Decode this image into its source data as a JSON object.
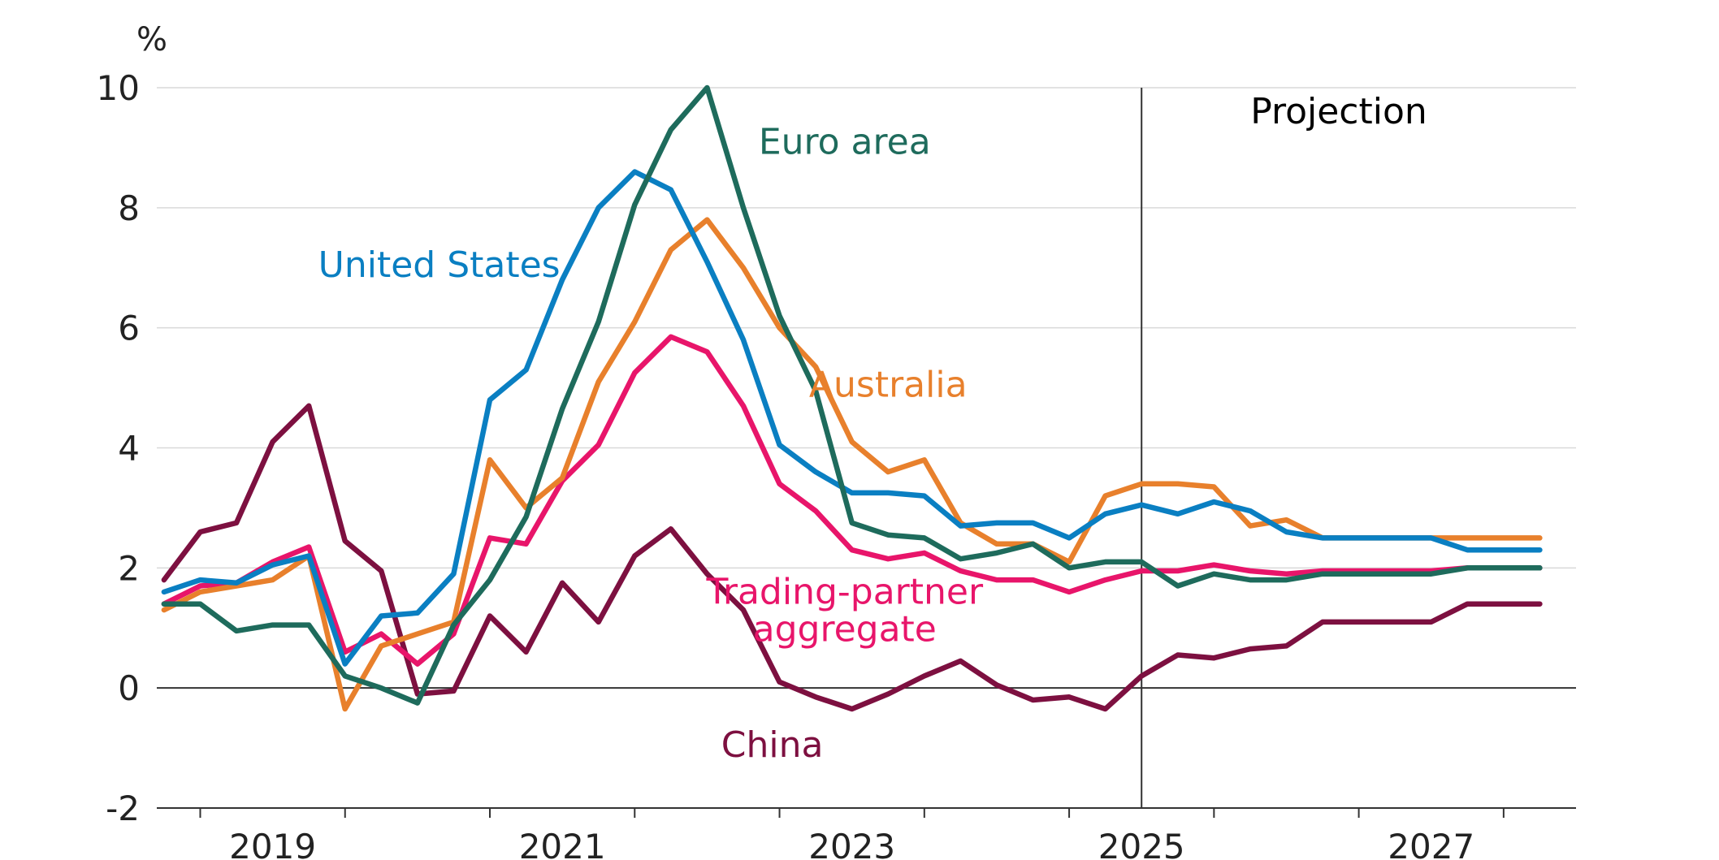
{
  "chart_data": {
    "type": "line",
    "ylabel": "%",
    "ylim": [
      -2,
      10
    ],
    "yticks": [
      -2,
      0,
      2,
      4,
      6,
      8,
      10
    ],
    "xlim": [
      2018.7,
      2028.5
    ],
    "xticks_labeled": [
      "2019",
      "2021",
      "2023",
      "2025",
      "2027"
    ],
    "projection_label": "Projection",
    "projection_start": 2025.5,
    "grid": true,
    "series": [
      {
        "name": "United States",
        "color": "#0a7fc2",
        "x": [
          2018.75,
          2019.0,
          2019.25,
          2019.5,
          2019.75,
          2020.0,
          2020.25,
          2020.5,
          2020.75,
          2021.0,
          2021.25,
          2021.5,
          2021.75,
          2022.0,
          2022.25,
          2022.5,
          2022.75,
          2023.0,
          2023.25,
          2023.5,
          2023.75,
          2024.0,
          2024.25,
          2024.5,
          2024.75,
          2025.0,
          2025.25,
          2025.5,
          2025.75,
          2026.0,
          2026.25,
          2026.5,
          2026.75,
          2027.0,
          2027.25,
          2027.5,
          2027.75,
          2028.0,
          2028.25
        ],
        "y": [
          1.6,
          1.8,
          1.75,
          2.05,
          2.2,
          0.4,
          1.2,
          1.25,
          1.9,
          4.8,
          5.3,
          6.8,
          8.0,
          8.6,
          8.3,
          7.1,
          5.8,
          4.05,
          3.6,
          3.25,
          3.25,
          3.2,
          2.7,
          2.75,
          2.75,
          2.5,
          2.9,
          3.05,
          2.9,
          3.1,
          2.95,
          2.6,
          2.5,
          2.5,
          2.5,
          2.5,
          2.3,
          2.3,
          2.3
        ]
      },
      {
        "name": "Euro area",
        "color": "#1e6b5c",
        "x": [
          2018.75,
          2019.0,
          2019.25,
          2019.5,
          2019.75,
          2020.0,
          2020.25,
          2020.5,
          2020.75,
          2021.0,
          2021.25,
          2021.5,
          2021.75,
          2022.0,
          2022.25,
          2022.5,
          2022.75,
          2023.0,
          2023.25,
          2023.5,
          2023.75,
          2024.0,
          2024.25,
          2024.5,
          2024.75,
          2025.0,
          2025.25,
          2025.5,
          2025.75,
          2026.0,
          2026.25,
          2026.5,
          2026.75,
          2027.0,
          2027.25,
          2027.5,
          2027.75,
          2028.0,
          2028.25
        ],
        "y": [
          1.4,
          1.4,
          0.95,
          1.05,
          1.05,
          0.2,
          0.0,
          -0.25,
          1.05,
          1.8,
          2.85,
          4.65,
          6.1,
          8.05,
          9.3,
          10.0,
          8.0,
          6.2,
          4.95,
          2.75,
          2.55,
          2.5,
          2.15,
          2.25,
          2.4,
          2.0,
          2.1,
          2.1,
          1.7,
          1.9,
          1.8,
          1.8,
          1.9,
          1.9,
          1.9,
          1.9,
          2.0,
          2.0,
          2.0
        ]
      },
      {
        "name": "Australia",
        "color": "#e8802c",
        "x": [
          2018.75,
          2019.0,
          2019.25,
          2019.5,
          2019.75,
          2020.0,
          2020.25,
          2020.5,
          2020.75,
          2021.0,
          2021.25,
          2021.5,
          2021.75,
          2022.0,
          2022.25,
          2022.5,
          2022.75,
          2023.0,
          2023.25,
          2023.5,
          2023.75,
          2024.0,
          2024.25,
          2024.5,
          2024.75,
          2025.0,
          2025.25,
          2025.5,
          2025.75,
          2026.0,
          2026.25,
          2026.5,
          2026.75,
          2027.0,
          2027.25,
          2027.5,
          2027.75,
          2028.0,
          2028.25
        ],
        "y": [
          1.3,
          1.6,
          1.7,
          1.8,
          2.2,
          -0.35,
          0.7,
          0.9,
          1.1,
          3.8,
          3.0,
          3.5,
          5.1,
          6.1,
          7.3,
          7.8,
          7.0,
          6.0,
          5.35,
          4.1,
          3.6,
          3.8,
          2.75,
          2.4,
          2.4,
          2.1,
          3.2,
          3.4,
          3.4,
          3.35,
          2.7,
          2.8,
          2.5,
          2.5,
          2.5,
          2.5,
          2.5,
          2.5,
          2.5
        ]
      },
      {
        "name": "Trading-partner aggregate",
        "color": "#e8156a",
        "x": [
          2018.75,
          2019.0,
          2019.25,
          2019.5,
          2019.75,
          2020.0,
          2020.25,
          2020.5,
          2020.75,
          2021.0,
          2021.25,
          2021.5,
          2021.75,
          2022.0,
          2022.25,
          2022.5,
          2022.75,
          2023.0,
          2023.25,
          2023.5,
          2023.75,
          2024.0,
          2024.25,
          2024.5,
          2024.75,
          2025.0,
          2025.25,
          2025.5,
          2025.75,
          2026.0,
          2026.25,
          2026.5,
          2026.75,
          2027.0,
          2027.25,
          2027.5,
          2027.75,
          2028.0,
          2028.25
        ],
        "y": [
          1.4,
          1.7,
          1.75,
          2.1,
          2.35,
          0.6,
          0.9,
          0.4,
          0.9,
          2.5,
          2.4,
          3.45,
          4.05,
          5.25,
          5.85,
          5.6,
          4.7,
          3.4,
          2.95,
          2.3,
          2.15,
          2.25,
          1.95,
          1.8,
          1.8,
          1.6,
          1.8,
          1.95,
          1.95,
          2.05,
          1.95,
          1.9,
          1.95,
          1.95,
          1.95,
          1.95,
          2.0,
          2.0,
          2.0
        ]
      },
      {
        "name": "China",
        "color": "#7d1040",
        "x": [
          2018.75,
          2019.0,
          2019.25,
          2019.5,
          2019.75,
          2020.0,
          2020.25,
          2020.5,
          2020.75,
          2021.0,
          2021.25,
          2021.5,
          2021.75,
          2022.0,
          2022.25,
          2022.5,
          2022.75,
          2023.0,
          2023.25,
          2023.5,
          2023.75,
          2024.0,
          2024.25,
          2024.5,
          2024.75,
          2025.0,
          2025.25,
          2025.5,
          2025.75,
          2026.0,
          2026.25,
          2026.5,
          2026.75,
          2027.0,
          2027.25,
          2027.5,
          2027.75,
          2028.0,
          2028.25
        ],
        "y": [
          1.8,
          2.6,
          2.75,
          4.1,
          4.7,
          2.45,
          1.95,
          -0.1,
          -0.05,
          1.2,
          0.6,
          1.75,
          1.1,
          2.2,
          2.65,
          1.9,
          1.3,
          0.1,
          -0.15,
          -0.35,
          -0.1,
          0.2,
          0.45,
          0.05,
          -0.2,
          -0.15,
          -0.35,
          0.2,
          0.55,
          0.5,
          0.65,
          0.7,
          1.1,
          1.1,
          1.1,
          1.1,
          1.4,
          1.4,
          1.4
        ]
      }
    ]
  }
}
